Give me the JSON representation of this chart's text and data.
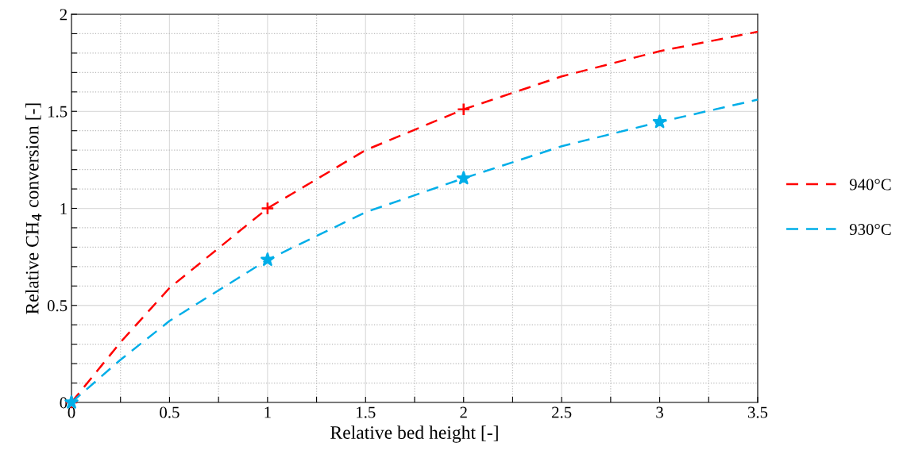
{
  "chart_data": {
    "type": "line",
    "xlabel": "Relative bed height [-]",
    "ylabel": "Relative CH$_{4}$ conversion [-]",
    "xlim": [
      0,
      3.5
    ],
    "ylim": [
      0,
      2
    ],
    "xticks": [
      0,
      {
        "value": 0.25,
        "label": null
      },
      0.5,
      {
        "value": 0.75,
        "label": null
      },
      1,
      {
        "value": 1.25,
        "label": null
      },
      1.5,
      {
        "value": 1.75,
        "label": null
      },
      2,
      {
        "value": 2.25,
        "label": null
      },
      2.5,
      {
        "value": 2.75,
        "label": null
      },
      3,
      {
        "value": 3.25,
        "label": null
      },
      3.5
    ],
    "yticks": [
      0,
      {
        "value": 0.1,
        "label": null
      },
      {
        "value": 0.2,
        "label": null
      },
      {
        "value": 0.3,
        "label": null
      },
      {
        "value": 0.4,
        "label": null
      },
      0.5,
      {
        "value": 0.6,
        "label": null
      },
      {
        "value": 0.7,
        "label": null
      },
      {
        "value": 0.8,
        "label": null
      },
      {
        "value": 0.9,
        "label": null
      },
      1,
      {
        "value": 1.1,
        "label": null
      },
      {
        "value": 1.2,
        "label": null
      },
      {
        "value": 1.3,
        "label": null
      },
      {
        "value": 1.4,
        "label": null
      },
      1.5,
      {
        "value": 1.6,
        "label": null
      },
      {
        "value": 1.7,
        "label": null
      },
      {
        "value": 1.8,
        "label": null
      },
      {
        "value": 1.9,
        "label": null
      },
      2
    ],
    "grid": true,
    "legend": "right",
    "line_style": "dashed",
    "series": [
      {
        "name": "940°C",
        "color": "#ff0000",
        "x": [
          0,
          0.25,
          0.5,
          1,
          1.5,
          2,
          2.5,
          3,
          3.5
        ],
        "values": [
          0,
          0.31,
          0.59,
          1.0,
          1.3,
          1.51,
          1.68,
          1.81,
          1.91
        ],
        "marker": "none"
      },
      {
        "name": "930°C",
        "color": "#00aee8",
        "x": [
          0,
          0.25,
          0.5,
          1,
          1.5,
          2,
          2.5,
          3,
          3.5
        ],
        "values": [
          0,
          0.22,
          0.42,
          0.735,
          0.98,
          1.155,
          1.32,
          1.445,
          1.56
        ],
        "marker": "none"
      },
      {
        "type": "scatter",
        "color": "#ff0000",
        "x": [
          0,
          1,
          2
        ],
        "values": [
          0,
          1.0,
          1.51
        ],
        "marker": "cross"
      },
      {
        "type": "scatter",
        "color": "#00aee8",
        "x": [
          0,
          1,
          2,
          3
        ],
        "values": [
          0,
          0.735,
          1.155,
          1.445
        ],
        "marker": "star"
      }
    ]
  }
}
